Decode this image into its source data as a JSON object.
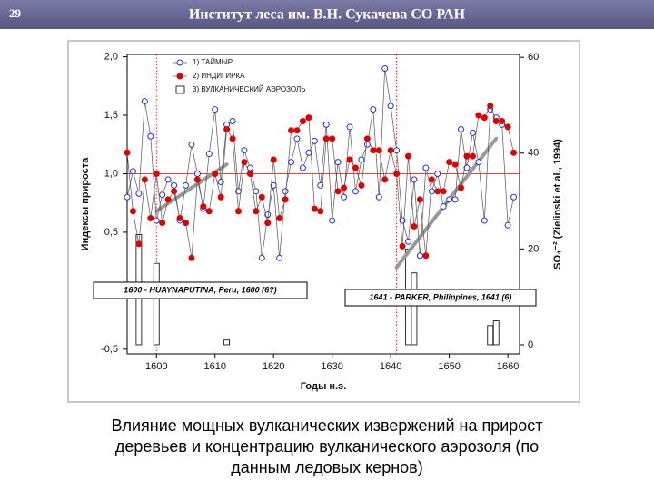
{
  "slide_number": "29",
  "header_title": "Институт  леса им. В.Н. Сукачева СО РАН",
  "chart_data": {
    "type": "line",
    "x_label": "Годы н.э.",
    "y_label": "Индексы прироста",
    "y2_label": "SO₄⁻²  (Zielinski et al., 1994)",
    "x": [
      1595,
      1596,
      1597,
      1598,
      1599,
      1600,
      1601,
      1602,
      1603,
      1604,
      1605,
      1606,
      1607,
      1608,
      1609,
      1610,
      1611,
      1612,
      1613,
      1614,
      1615,
      1616,
      1617,
      1618,
      1619,
      1620,
      1621,
      1622,
      1623,
      1624,
      1625,
      1626,
      1627,
      1628,
      1629,
      1630,
      1631,
      1632,
      1633,
      1634,
      1635,
      1636,
      1637,
      1638,
      1639,
      1640,
      1641,
      1642,
      1643,
      1644,
      1645,
      1646,
      1647,
      1648,
      1649,
      1650,
      1651,
      1652,
      1653,
      1654,
      1655,
      1656,
      1657,
      1658,
      1659,
      1660,
      1661
    ],
    "series": [
      {
        "name": "1) ТАЙМЫР",
        "color": "#2233cc",
        "marker": "open-circle",
        "values": [
          0.8,
          1.02,
          0.83,
          1.62,
          1.32,
          0.6,
          0.82,
          0.95,
          0.9,
          0.6,
          0.9,
          1.25,
          1.0,
          0.7,
          1.17,
          1.55,
          0.93,
          1.42,
          1.45,
          0.85,
          1.2,
          1.05,
          0.85,
          0.28,
          0.65,
          0.9,
          0.28,
          0.85,
          1.1,
          1.3,
          1.05,
          1.18,
          1.28,
          0.9,
          1.42,
          0.6,
          1.1,
          0.8,
          1.4,
          0.85,
          1.12,
          1.25,
          1.55,
          0.8,
          1.9,
          1.58,
          1.2,
          0.6,
          0.42,
          0.95,
          0.3,
          1.05,
          0.85,
          1.0,
          0.72,
          0.78,
          0.78,
          1.38,
          1.05,
          1.35,
          1.1,
          0.6,
          1.55,
          1.48,
          1.42,
          0.56,
          0.8
        ]
      },
      {
        "name": "2) ИНДИГИРКА",
        "color": "#dd0000",
        "marker": "filled-circle",
        "values": [
          1.18,
          0.68,
          0.4,
          0.95,
          0.62,
          1.0,
          0.58,
          0.78,
          0.85,
          0.62,
          0.58,
          0.28,
          0.95,
          0.72,
          0.68,
          1.0,
          0.8,
          1.38,
          1.3,
          0.68,
          1.1,
          1.0,
          0.68,
          0.8,
          0.58,
          1.12,
          0.62,
          0.78,
          1.37,
          1.37,
          1.45,
          1.48,
          0.7,
          0.68,
          1.3,
          1.3,
          0.85,
          0.88,
          1.12,
          1.05,
          0.9,
          1.3,
          1.2,
          1.2,
          0.95,
          1.2,
          1.0,
          0.38,
          1.15,
          0.55,
          0.78,
          0.3,
          0.95,
          0.85,
          0.85,
          1.1,
          1.08,
          0.88,
          1.15,
          1.15,
          1.5,
          1.48,
          1.58,
          1.45,
          1.45,
          1.4,
          1.18
        ]
      },
      {
        "name": "3) ВУЛКАНИЧЕСКИЙ АЭРОЗОЛЬ",
        "type": "bar",
        "axis": "y2",
        "color": "#ffffff",
        "x": [
          1597,
          1600,
          1612,
          1643,
          1644,
          1657,
          1658
        ],
        "values": [
          23,
          17,
          1,
          20,
          15,
          4,
          5
        ]
      }
    ],
    "xlim": [
      1595,
      1662
    ],
    "xticks": [
      1600,
      1610,
      1620,
      1630,
      1640,
      1650,
      1660
    ],
    "ylim": [
      -0.54,
      2.02
    ],
    "yticks": [
      {
        "value": -0.5,
        "label": "-0,5"
      },
      {
        "value": 0.5,
        "label": "0,5"
      },
      {
        "value": 1.0,
        "label": "1,0"
      },
      {
        "value": 1.5,
        "label": "1,5"
      },
      {
        "value": 2.0,
        "label": "2,0"
      }
    ],
    "y2lim": [
      -1.9,
      60.6
    ],
    "y2ticks": [
      0,
      20,
      40,
      60
    ],
    "reference_line_y": 1.0,
    "event_lines_x": [
      1600,
      1641
    ],
    "trend_lines": [
      {
        "x": [
          1600,
          1612
        ],
        "y": [
          0.68,
          1.08
        ]
      },
      {
        "x": [
          1641,
          1658
        ],
        "y": [
          0.2,
          1.3
        ]
      }
    ],
    "annotations": [
      "1600 - HUAYNAPUTINA, Peru, 1600 (6?)",
      "1641 - PARKER, Philippines, 1641 (6)"
    ]
  },
  "caption": [
    "Влияние мощных вулканических извержений на прирост",
    "деревьев и концентрацию вулканического аэрозоля (по",
    "данным ледовых кернов)"
  ]
}
